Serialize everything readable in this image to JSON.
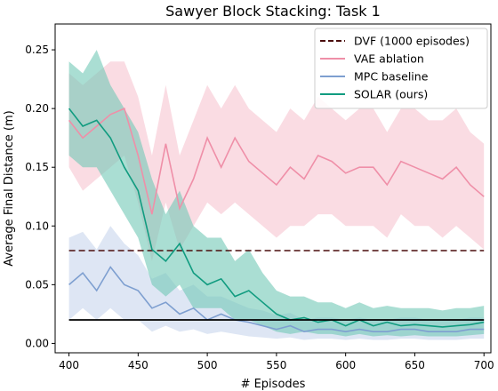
{
  "chart_data": {
    "type": "line",
    "title": "Sawyer Block Stacking: Task 1",
    "xlabel": "# Episodes",
    "ylabel": "Average Final Distance (m)",
    "xlim": [
      390,
      705
    ],
    "ylim": [
      -0.008,
      0.272
    ],
    "xticks": [
      400,
      450,
      500,
      550,
      600,
      650,
      700
    ],
    "yticks": [
      0.0,
      0.05,
      0.1,
      0.15,
      0.2,
      0.25
    ],
    "ytick_labels": [
      "0.00",
      "0.05",
      "0.10",
      "0.15",
      "0.20",
      "0.25"
    ],
    "grid": false,
    "legend_position": "top-right",
    "series": [
      {
        "name": "DVF (1000 episodes)",
        "style": "dashed",
        "color": "#4a0d0d",
        "x": [
          400,
          700
        ],
        "y": [
          0.079,
          0.079
        ]
      },
      {
        "name": "VAE ablation",
        "style": "solid-with-band",
        "color": "#ef8fa8",
        "band_color": "#f7c4d0",
        "x": [
          400,
          410,
          420,
          430,
          440,
          450,
          460,
          470,
          480,
          490,
          500,
          510,
          520,
          530,
          540,
          550,
          560,
          570,
          580,
          590,
          600,
          610,
          620,
          630,
          640,
          650,
          660,
          670,
          680,
          690,
          700
        ],
        "y": [
          0.19,
          0.175,
          0.185,
          0.195,
          0.2,
          0.16,
          0.11,
          0.17,
          0.115,
          0.14,
          0.175,
          0.15,
          0.175,
          0.155,
          0.145,
          0.135,
          0.15,
          0.14,
          0.16,
          0.155,
          0.145,
          0.15,
          0.15,
          0.135,
          0.155,
          0.15,
          0.145,
          0.14,
          0.15,
          0.135,
          0.125
        ],
        "y_low": [
          0.15,
          0.13,
          0.14,
          0.15,
          0.16,
          0.12,
          0.07,
          0.12,
          0.08,
          0.1,
          0.12,
          0.11,
          0.12,
          0.11,
          0.1,
          0.09,
          0.1,
          0.1,
          0.11,
          0.11,
          0.1,
          0.1,
          0.1,
          0.09,
          0.11,
          0.1,
          0.1,
          0.09,
          0.1,
          0.09,
          0.08
        ],
        "y_high": [
          0.23,
          0.22,
          0.23,
          0.24,
          0.24,
          0.21,
          0.16,
          0.22,
          0.16,
          0.19,
          0.22,
          0.2,
          0.22,
          0.2,
          0.19,
          0.18,
          0.2,
          0.19,
          0.21,
          0.2,
          0.19,
          0.2,
          0.2,
          0.18,
          0.2,
          0.2,
          0.19,
          0.19,
          0.2,
          0.18,
          0.17
        ]
      },
      {
        "name": "MPC baseline",
        "style": "solid-with-band",
        "color": "#7e9fd0",
        "band_color": "#c8d6ec",
        "x": [
          400,
          410,
          420,
          430,
          440,
          450,
          460,
          470,
          480,
          490,
          500,
          510,
          520,
          530,
          540,
          550,
          560,
          570,
          580,
          590,
          600,
          610,
          620,
          630,
          640,
          650,
          660,
          670,
          680,
          690,
          700
        ],
        "y": [
          0.05,
          0.06,
          0.045,
          0.065,
          0.05,
          0.045,
          0.03,
          0.035,
          0.025,
          0.03,
          0.02,
          0.025,
          0.02,
          0.018,
          0.015,
          0.012,
          0.015,
          0.01,
          0.012,
          0.012,
          0.01,
          0.012,
          0.01,
          0.01,
          0.012,
          0.012,
          0.01,
          0.01,
          0.01,
          0.012,
          0.012
        ],
        "y_low": [
          0.02,
          0.03,
          0.02,
          0.03,
          0.02,
          0.02,
          0.01,
          0.015,
          0.01,
          0.012,
          0.008,
          0.01,
          0.008,
          0.006,
          0.005,
          0.004,
          0.005,
          0.003,
          0.004,
          0.004,
          0.003,
          0.004,
          0.003,
          0.003,
          0.004,
          0.004,
          0.003,
          0.003,
          0.003,
          0.004,
          0.004
        ],
        "y_high": [
          0.09,
          0.095,
          0.08,
          0.1,
          0.085,
          0.075,
          0.055,
          0.06,
          0.045,
          0.05,
          0.04,
          0.04,
          0.035,
          0.03,
          0.028,
          0.024,
          0.026,
          0.02,
          0.022,
          0.022,
          0.02,
          0.022,
          0.02,
          0.02,
          0.022,
          0.022,
          0.02,
          0.02,
          0.02,
          0.022,
          0.022
        ]
      },
      {
        "name": "SOLAR (ours)",
        "style": "solid-with-band",
        "color": "#119c80",
        "band_color": "#72c8b5",
        "x": [
          400,
          410,
          420,
          430,
          440,
          450,
          460,
          470,
          480,
          490,
          500,
          510,
          520,
          530,
          540,
          550,
          560,
          570,
          580,
          590,
          600,
          610,
          620,
          630,
          640,
          650,
          660,
          670,
          680,
          690,
          700
        ],
        "y": [
          0.2,
          0.185,
          0.19,
          0.175,
          0.15,
          0.13,
          0.08,
          0.07,
          0.085,
          0.06,
          0.05,
          0.055,
          0.04,
          0.045,
          0.035,
          0.025,
          0.02,
          0.022,
          0.018,
          0.02,
          0.015,
          0.02,
          0.015,
          0.018,
          0.015,
          0.016,
          0.015,
          0.014,
          0.015,
          0.016,
          0.018
        ],
        "y_low": [
          0.16,
          0.15,
          0.15,
          0.13,
          0.11,
          0.09,
          0.05,
          0.04,
          0.05,
          0.03,
          0.03,
          0.03,
          0.02,
          0.02,
          0.015,
          0.01,
          0.008,
          0.01,
          0.008,
          0.008,
          0.006,
          0.008,
          0.006,
          0.007,
          0.006,
          0.007,
          0.006,
          0.006,
          0.006,
          0.007,
          0.008
        ],
        "y_high": [
          0.24,
          0.23,
          0.25,
          0.22,
          0.2,
          0.18,
          0.14,
          0.11,
          0.13,
          0.1,
          0.09,
          0.09,
          0.07,
          0.08,
          0.06,
          0.045,
          0.04,
          0.04,
          0.035,
          0.035,
          0.03,
          0.035,
          0.03,
          0.032,
          0.03,
          0.03,
          0.03,
          0.028,
          0.03,
          0.03,
          0.032
        ]
      },
      {
        "name": "",
        "style": "solid",
        "color": "#000000",
        "x": [
          400,
          700
        ],
        "y": [
          0.02,
          0.02
        ]
      }
    ]
  }
}
